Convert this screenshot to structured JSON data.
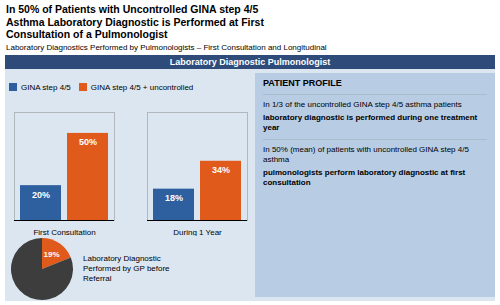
{
  "chart_data": [
    {
      "type": "bar",
      "title": "In 50% of Patients with Uncontrolled GINA step 4/5\nAsthma Laboratory Diagnostic is Performed at First\nConsultation of a Pulmonologist",
      "subtitle": "Laboratory Diagnostics Performed by Pulmonologists – First Consultation and Longitudinal",
      "annotations": [
        "Laboratory Diagnostic Pulmonologist",
        "PATIENT PROFILE",
        "In 1/3 of the uncontrolled GINA step 4/5 asthma patients",
        "laboratory diagnostic is performed during one treatment year",
        "In 50% (mean) of patients with uncontrolled GINA step 4/5 asthma",
        "pulmonologists perform laboratory diagnostic at first consultation"
      ],
      "categories": [
        "First Consultation",
        "During 1 Year"
      ],
      "series": [
        {
          "name": "GINA step 4/5",
          "color": "#2e5f9e",
          "values": [
            20,
            18
          ],
          "value_labels": [
            "20%",
            "18%"
          ]
        },
        {
          "name": "GINA step 4/5 + uncontrolled",
          "color": "#e05a1c",
          "values": [
            50,
            34
          ],
          "value_labels": [
            "50%",
            "34%"
          ]
        }
      ],
      "ylim": [
        0,
        62
      ],
      "yticks": [],
      "tick_labels": "x",
      "legend": "upper left",
      "data_labels": true,
      "grid": false
    },
    {
      "type": "pie",
      "values": [
        19,
        81
      ],
      "value_labels": [
        "19%",
        null
      ],
      "colors": [
        "#e05a1c",
        "#3d3d3d"
      ],
      "annotations": [
        "Laboratory Diagnostic\nPerformed by GP before\nReferral"
      ],
      "data_labels": true
    }
  ]
}
